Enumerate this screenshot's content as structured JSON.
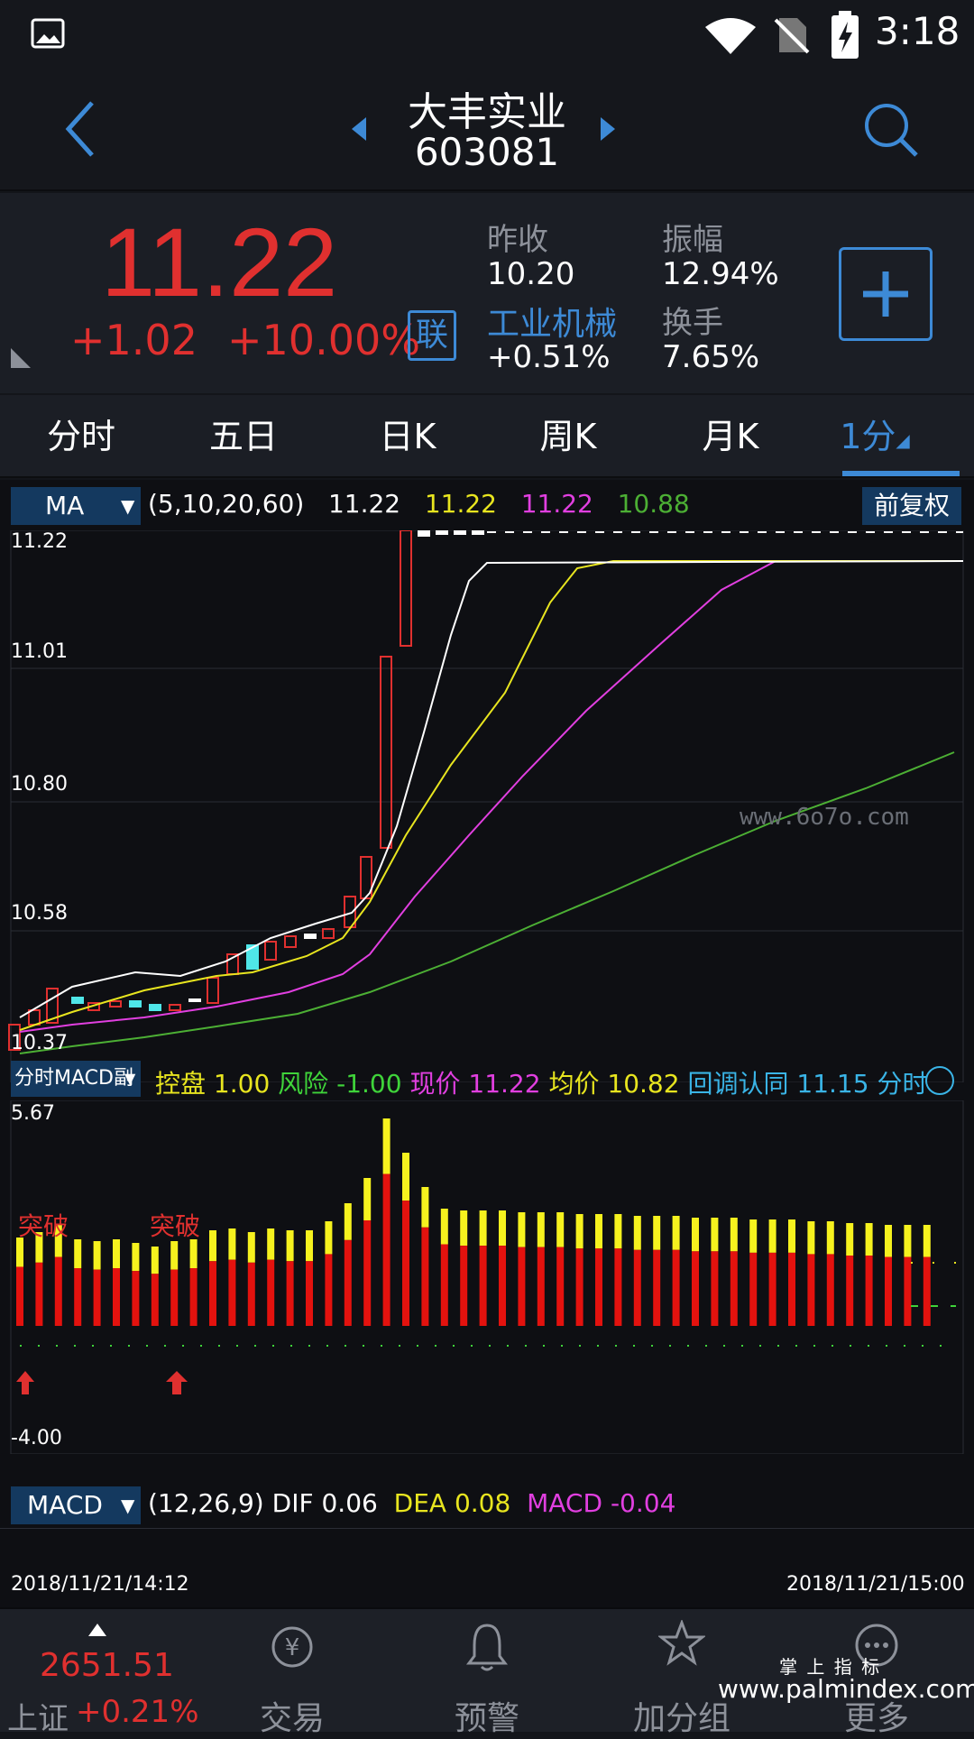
{
  "status_bar": {
    "time": "3:18"
  },
  "header": {
    "stock_name": "大丰实业",
    "stock_code": "603081"
  },
  "quote": {
    "price": "11.22",
    "change": "+1.02",
    "change_pct": "+10.00%",
    "lian_badge": "联",
    "prev_close_label": "昨收",
    "prev_close": "10.20",
    "amplitude_label": "振幅",
    "amplitude": "12.94%",
    "sector_label": "工业机械",
    "sector_change": "+0.51%",
    "turnover_label": "换手",
    "turnover": "7.65%"
  },
  "tabs": [
    {
      "label": "分时"
    },
    {
      "label": "五日"
    },
    {
      "label": "日K"
    },
    {
      "label": "周K"
    },
    {
      "label": "月K"
    },
    {
      "label": "1分"
    }
  ],
  "ma_legend": {
    "selector": "MA",
    "params": "(5,10,20,60)",
    "ma5": "11.22",
    "ma10": "11.22",
    "ma20": "11.22",
    "ma60": "10.88",
    "adjust_button": "前复权"
  },
  "price_axis": {
    "labels": [
      "11.22",
      "11.01",
      "10.80",
      "10.58",
      "10.37"
    ]
  },
  "macd_sub": {
    "selector": "分时MACD副",
    "kongpan_label": "控盘",
    "kongpan": "1.00",
    "risk_label": "风险",
    "risk": "-1.00",
    "price_label": "现价",
    "price": "11.22",
    "avg_label": "均价",
    "avg": "10.82",
    "pullback_label": "回调认同",
    "pullback": "11.15",
    "fenshi_label": "分时",
    "top": "5.67",
    "bottom": "-4.00",
    "breakout_1": "突破",
    "breakout_2": "突破"
  },
  "macd_legend": {
    "selector": "MACD",
    "params": "(12,26,9)",
    "dif_label": "DIF",
    "dif": "0.06",
    "dea_label": "DEA",
    "dea": "0.08",
    "macd_label": "MACD",
    "macd": "-0.04"
  },
  "time_axis": {
    "start": "2018/11/21/14:12",
    "end": "2018/11/21/15:00"
  },
  "watermark": {
    "site": "www.6o7o.com",
    "brand_cn": "掌 上 指 标",
    "brand_url": "www.palmindex.com"
  },
  "bottom_nav": {
    "index_value": "2651.51",
    "index_name": "上证",
    "index_change": "+0.21%",
    "items": [
      {
        "label": "交易"
      },
      {
        "label": "预警"
      },
      {
        "label": "加分组"
      },
      {
        "label": "更多"
      }
    ]
  },
  "colors": {
    "up": "#e0302f",
    "ma5": "#ffffff",
    "ma10": "#e8e51f",
    "ma20": "#e13fe0",
    "ma60": "#4caf34",
    "accent": "#3d8ad6"
  }
}
